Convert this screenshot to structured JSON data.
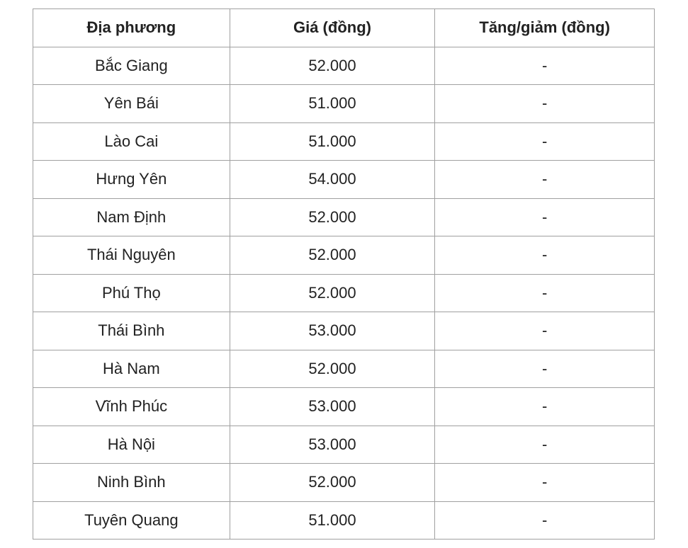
{
  "table": {
    "headers": [
      "Địa phương",
      "Giá (đồng)",
      "Tăng/giảm (đồng)"
    ],
    "rows": [
      [
        "Bắc Giang",
        "52.000",
        "-"
      ],
      [
        "Yên Bái",
        "51.000",
        "-"
      ],
      [
        "Lào Cai",
        "51.000",
        "-"
      ],
      [
        "Hưng Yên",
        "54.000",
        "-"
      ],
      [
        "Nam Định",
        "52.000",
        "-"
      ],
      [
        "Thái Nguyên",
        "52.000",
        "-"
      ],
      [
        "Phú Thọ",
        "52.000",
        "-"
      ],
      [
        "Thái Bình",
        "53.000",
        "-"
      ],
      [
        "Hà Nam",
        "52.000",
        "-"
      ],
      [
        "Vĩnh Phúc",
        "53.000",
        "-"
      ],
      [
        "Hà Nội",
        "53.000",
        "-"
      ],
      [
        "Ninh Bình",
        "52.000",
        "-"
      ],
      [
        "Tuyên Quang",
        "51.000",
        "-"
      ]
    ]
  }
}
